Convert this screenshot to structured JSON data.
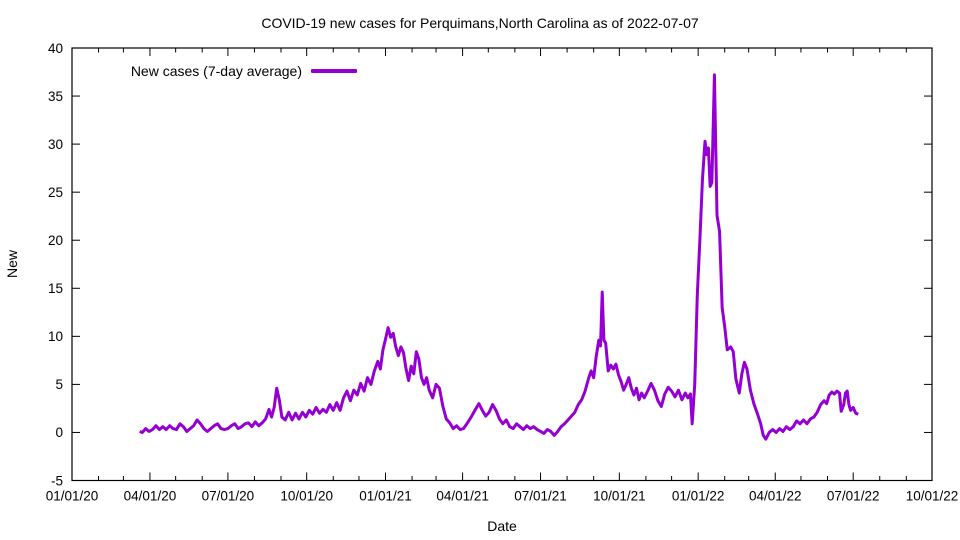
{
  "chart_data": {
    "type": "line",
    "title": "COVID-19 new cases for Perquimans,North Carolina as of 2022-07-07",
    "xlabel": "Date",
    "ylabel": "New",
    "legend_label": "New cases (7-day average)",
    "legend_position": "top-left-inside",
    "grid": false,
    "background": "#ffffff",
    "axis_color": "#000000",
    "x_range": [
      "2020-01-01",
      "2022-10-01"
    ],
    "ylim": [
      -5,
      40
    ],
    "y_ticks": [
      -5,
      0,
      5,
      10,
      15,
      20,
      25,
      30,
      35,
      40
    ],
    "x_minor_tick_interval": "month",
    "x_ticks": [
      {
        "date": "2020-01-01",
        "label": "01/01/20"
      },
      {
        "date": "2020-04-01",
        "label": "04/01/20"
      },
      {
        "date": "2020-07-01",
        "label": "07/01/20"
      },
      {
        "date": "2020-10-01",
        "label": "10/01/20"
      },
      {
        "date": "2021-01-01",
        "label": "01/01/21"
      },
      {
        "date": "2021-04-01",
        "label": "04/01/21"
      },
      {
        "date": "2021-07-01",
        "label": "07/01/21"
      },
      {
        "date": "2021-10-01",
        "label": "10/01/21"
      },
      {
        "date": "2022-01-01",
        "label": "01/01/22"
      },
      {
        "date": "2022-04-01",
        "label": "04/01/22"
      },
      {
        "date": "2022-07-01",
        "label": "07/01/22"
      },
      {
        "date": "2022-10-01",
        "label": "10/01/22"
      }
    ],
    "series": [
      {
        "name": "New cases (7-day average)",
        "color": "#9400d3",
        "line_width": 3,
        "points": [
          [
            "2020-03-20",
            0.1
          ],
          [
            "2020-03-23",
            0.0
          ],
          [
            "2020-03-27",
            0.4
          ],
          [
            "2020-03-31",
            0.1
          ],
          [
            "2020-04-04",
            0.3
          ],
          [
            "2020-04-08",
            0.7
          ],
          [
            "2020-04-12",
            0.3
          ],
          [
            "2020-04-16",
            0.6
          ],
          [
            "2020-04-20",
            0.3
          ],
          [
            "2020-04-24",
            0.7
          ],
          [
            "2020-04-28",
            0.4
          ],
          [
            "2020-05-02",
            0.3
          ],
          [
            "2020-05-06",
            0.9
          ],
          [
            "2020-05-10",
            0.6
          ],
          [
            "2020-05-14",
            0.1
          ],
          [
            "2020-05-18",
            0.4
          ],
          [
            "2020-05-22",
            0.7
          ],
          [
            "2020-05-26",
            1.3
          ],
          [
            "2020-05-30",
            0.9
          ],
          [
            "2020-06-03",
            0.4
          ],
          [
            "2020-06-07",
            0.1
          ],
          [
            "2020-06-11",
            0.4
          ],
          [
            "2020-06-15",
            0.7
          ],
          [
            "2020-06-19",
            0.9
          ],
          [
            "2020-06-23",
            0.4
          ],
          [
            "2020-06-27",
            0.3
          ],
          [
            "2020-07-01",
            0.4
          ],
          [
            "2020-07-05",
            0.7
          ],
          [
            "2020-07-09",
            0.9
          ],
          [
            "2020-07-13",
            0.4
          ],
          [
            "2020-07-17",
            0.6
          ],
          [
            "2020-07-21",
            0.9
          ],
          [
            "2020-07-25",
            1.0
          ],
          [
            "2020-07-29",
            0.6
          ],
          [
            "2020-08-02",
            1.1
          ],
          [
            "2020-08-06",
            0.7
          ],
          [
            "2020-08-10",
            1.0
          ],
          [
            "2020-08-14",
            1.4
          ],
          [
            "2020-08-18",
            2.4
          ],
          [
            "2020-08-21",
            1.6
          ],
          [
            "2020-08-24",
            2.6
          ],
          [
            "2020-08-27",
            4.6
          ],
          [
            "2020-08-30",
            3.4
          ],
          [
            "2020-09-02",
            1.6
          ],
          [
            "2020-09-06",
            1.3
          ],
          [
            "2020-09-10",
            2.1
          ],
          [
            "2020-09-14",
            1.3
          ],
          [
            "2020-09-18",
            2.0
          ],
          [
            "2020-09-22",
            1.4
          ],
          [
            "2020-09-26",
            2.1
          ],
          [
            "2020-09-30",
            1.6
          ],
          [
            "2020-10-04",
            2.3
          ],
          [
            "2020-10-08",
            1.9
          ],
          [
            "2020-10-12",
            2.6
          ],
          [
            "2020-10-16",
            2.0
          ],
          [
            "2020-10-20",
            2.4
          ],
          [
            "2020-10-24",
            2.1
          ],
          [
            "2020-10-28",
            2.9
          ],
          [
            "2020-11-01",
            2.3
          ],
          [
            "2020-11-05",
            3.1
          ],
          [
            "2020-11-09",
            2.3
          ],
          [
            "2020-11-13",
            3.6
          ],
          [
            "2020-11-17",
            4.3
          ],
          [
            "2020-11-21",
            3.3
          ],
          [
            "2020-11-25",
            4.4
          ],
          [
            "2020-11-29",
            3.9
          ],
          [
            "2020-12-03",
            5.1
          ],
          [
            "2020-12-07",
            4.3
          ],
          [
            "2020-12-11",
            5.7
          ],
          [
            "2020-12-15",
            5.0
          ],
          [
            "2020-12-19",
            6.4
          ],
          [
            "2020-12-23",
            7.4
          ],
          [
            "2020-12-26",
            6.6
          ],
          [
            "2020-12-29",
            8.6
          ],
          [
            "2021-01-01",
            9.7
          ],
          [
            "2021-01-04",
            10.9
          ],
          [
            "2021-01-07",
            9.9
          ],
          [
            "2021-01-10",
            10.3
          ],
          [
            "2021-01-13",
            8.9
          ],
          [
            "2021-01-16",
            8.0
          ],
          [
            "2021-01-19",
            8.9
          ],
          [
            "2021-01-22",
            8.3
          ],
          [
            "2021-01-25",
            6.6
          ],
          [
            "2021-01-28",
            5.4
          ],
          [
            "2021-01-31",
            6.9
          ],
          [
            "2021-02-03",
            6.1
          ],
          [
            "2021-02-06",
            8.4
          ],
          [
            "2021-02-09",
            7.6
          ],
          [
            "2021-02-12",
            5.7
          ],
          [
            "2021-02-15",
            5.0
          ],
          [
            "2021-02-18",
            5.7
          ],
          [
            "2021-02-21",
            4.4
          ],
          [
            "2021-02-25",
            3.6
          ],
          [
            "2021-03-01",
            5.0
          ],
          [
            "2021-03-05",
            4.6
          ],
          [
            "2021-03-09",
            2.7
          ],
          [
            "2021-03-13",
            1.4
          ],
          [
            "2021-03-17",
            1.0
          ],
          [
            "2021-03-21",
            0.4
          ],
          [
            "2021-03-25",
            0.7
          ],
          [
            "2021-03-29",
            0.3
          ],
          [
            "2021-04-02",
            0.4
          ],
          [
            "2021-04-06",
            0.9
          ],
          [
            "2021-04-11",
            1.6
          ],
          [
            "2021-04-16",
            2.4
          ],
          [
            "2021-04-20",
            3.0
          ],
          [
            "2021-04-24",
            2.3
          ],
          [
            "2021-04-28",
            1.7
          ],
          [
            "2021-05-02",
            2.1
          ],
          [
            "2021-05-06",
            2.9
          ],
          [
            "2021-05-10",
            2.3
          ],
          [
            "2021-05-14",
            1.4
          ],
          [
            "2021-05-18",
            0.9
          ],
          [
            "2021-05-22",
            1.3
          ],
          [
            "2021-05-26",
            0.6
          ],
          [
            "2021-05-30",
            0.4
          ],
          [
            "2021-06-03",
            0.9
          ],
          [
            "2021-06-07",
            0.6
          ],
          [
            "2021-06-11",
            0.3
          ],
          [
            "2021-06-15",
            0.7
          ],
          [
            "2021-06-19",
            0.4
          ],
          [
            "2021-06-23",
            0.6
          ],
          [
            "2021-06-27",
            0.3
          ],
          [
            "2021-07-01",
            0.1
          ],
          [
            "2021-07-05",
            -0.1
          ],
          [
            "2021-07-09",
            0.3
          ],
          [
            "2021-07-13",
            0.1
          ],
          [
            "2021-07-17",
            -0.3
          ],
          [
            "2021-07-21",
            0.1
          ],
          [
            "2021-07-25",
            0.6
          ],
          [
            "2021-07-29",
            0.9
          ],
          [
            "2021-08-02",
            1.3
          ],
          [
            "2021-08-06",
            1.7
          ],
          [
            "2021-08-10",
            2.1
          ],
          [
            "2021-08-14",
            2.9
          ],
          [
            "2021-08-18",
            3.4
          ],
          [
            "2021-08-22",
            4.3
          ],
          [
            "2021-08-26",
            5.6
          ],
          [
            "2021-08-29",
            6.4
          ],
          [
            "2021-09-01",
            5.7
          ],
          [
            "2021-09-04",
            7.9
          ],
          [
            "2021-09-07",
            9.6
          ],
          [
            "2021-09-09",
            9.0
          ],
          [
            "2021-09-11",
            14.6
          ],
          [
            "2021-09-13",
            9.6
          ],
          [
            "2021-09-15",
            9.3
          ],
          [
            "2021-09-18",
            6.4
          ],
          [
            "2021-09-21",
            7.0
          ],
          [
            "2021-09-24",
            6.6
          ],
          [
            "2021-09-27",
            7.1
          ],
          [
            "2021-09-30",
            6.0
          ],
          [
            "2021-10-03",
            5.3
          ],
          [
            "2021-10-06",
            4.4
          ],
          [
            "2021-10-09",
            5.0
          ],
          [
            "2021-10-12",
            5.7
          ],
          [
            "2021-10-15",
            4.6
          ],
          [
            "2021-10-18",
            3.9
          ],
          [
            "2021-10-21",
            4.6
          ],
          [
            "2021-10-24",
            3.4
          ],
          [
            "2021-10-27",
            4.1
          ],
          [
            "2021-10-30",
            3.6
          ],
          [
            "2021-11-03",
            4.3
          ],
          [
            "2021-11-07",
            5.1
          ],
          [
            "2021-11-11",
            4.4
          ],
          [
            "2021-11-15",
            3.3
          ],
          [
            "2021-11-19",
            2.7
          ],
          [
            "2021-11-23",
            4.0
          ],
          [
            "2021-11-27",
            4.7
          ],
          [
            "2021-12-01",
            4.3
          ],
          [
            "2021-12-05",
            3.7
          ],
          [
            "2021-12-09",
            4.4
          ],
          [
            "2021-12-13",
            3.4
          ],
          [
            "2021-12-17",
            4.1
          ],
          [
            "2021-12-20",
            3.6
          ],
          [
            "2021-12-23",
            4.0
          ],
          [
            "2021-12-25",
            0.9
          ],
          [
            "2021-12-28",
            5.0
          ],
          [
            "2021-12-31",
            14.3
          ],
          [
            "2022-01-03",
            20.0
          ],
          [
            "2022-01-06",
            26.3
          ],
          [
            "2022-01-09",
            30.3
          ],
          [
            "2022-01-11",
            28.9
          ],
          [
            "2022-01-13",
            29.6
          ],
          [
            "2022-01-15",
            25.6
          ],
          [
            "2022-01-17",
            26.0
          ],
          [
            "2022-01-20",
            37.2
          ],
          [
            "2022-01-23",
            22.6
          ],
          [
            "2022-01-26",
            20.9
          ],
          [
            "2022-01-29",
            13.0
          ],
          [
            "2022-02-01",
            11.0
          ],
          [
            "2022-02-04",
            8.6
          ],
          [
            "2022-02-08",
            8.9
          ],
          [
            "2022-02-11",
            8.4
          ],
          [
            "2022-02-14",
            5.6
          ],
          [
            "2022-02-18",
            4.1
          ],
          [
            "2022-02-21",
            6.1
          ],
          [
            "2022-02-24",
            7.3
          ],
          [
            "2022-02-27",
            6.6
          ],
          [
            "2022-03-03",
            4.4
          ],
          [
            "2022-03-07",
            3.0
          ],
          [
            "2022-03-11",
            2.0
          ],
          [
            "2022-03-15",
            0.9
          ],
          [
            "2022-03-18",
            -0.3
          ],
          [
            "2022-03-21",
            -0.7
          ],
          [
            "2022-03-25",
            0.0
          ],
          [
            "2022-03-29",
            0.3
          ],
          [
            "2022-04-02",
            0.0
          ],
          [
            "2022-04-06",
            0.4
          ],
          [
            "2022-04-10",
            0.1
          ],
          [
            "2022-04-14",
            0.6
          ],
          [
            "2022-04-18",
            0.3
          ],
          [
            "2022-04-22",
            0.6
          ],
          [
            "2022-04-26",
            1.2
          ],
          [
            "2022-04-30",
            0.9
          ],
          [
            "2022-05-04",
            1.3
          ],
          [
            "2022-05-08",
            0.9
          ],
          [
            "2022-05-12",
            1.4
          ],
          [
            "2022-05-16",
            1.6
          ],
          [
            "2022-05-20",
            2.1
          ],
          [
            "2022-05-24",
            2.9
          ],
          [
            "2022-05-28",
            3.3
          ],
          [
            "2022-05-31",
            3.0
          ],
          [
            "2022-06-03",
            3.9
          ],
          [
            "2022-06-06",
            4.2
          ],
          [
            "2022-06-09",
            4.0
          ],
          [
            "2022-06-12",
            4.3
          ],
          [
            "2022-06-15",
            4.1
          ],
          [
            "2022-06-17",
            2.2
          ],
          [
            "2022-06-20",
            2.9
          ],
          [
            "2022-06-22",
            4.1
          ],
          [
            "2022-06-24",
            4.3
          ],
          [
            "2022-06-26",
            2.9
          ],
          [
            "2022-06-28",
            2.3
          ],
          [
            "2022-07-01",
            2.6
          ],
          [
            "2022-07-04",
            2.0
          ],
          [
            "2022-07-07",
            1.9
          ]
        ]
      }
    ]
  }
}
